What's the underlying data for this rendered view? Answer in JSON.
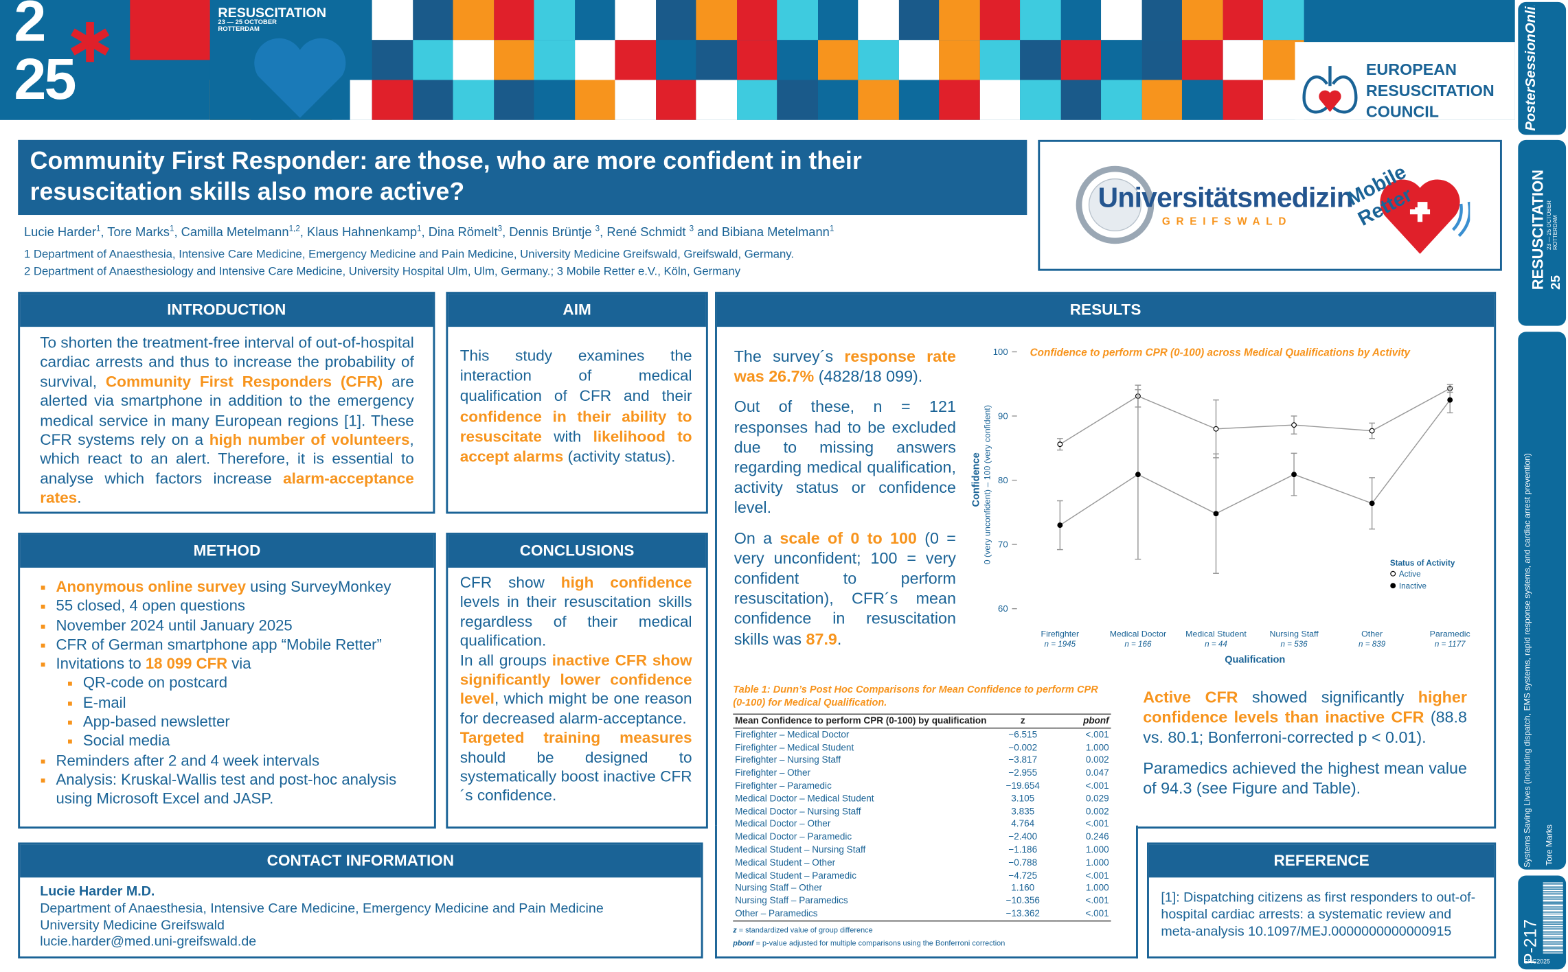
{
  "congress": {
    "year_top": "2",
    "year_bottom": "25",
    "name": "RESUSCITATION",
    "dates": "23 — 25 OCTOBER",
    "city": "ROTTERDAM"
  },
  "erc": [
    "EUROPEAN",
    "RESUSCITATION",
    "COUNCIL"
  ],
  "sidebar": {
    "brand": "PosterSessionOnline",
    "topic": "Systems Saving Lives (including dispatch, EMS systems, rapid response systems, and cardiac arrest prevention)",
    "author": "Tore Marks",
    "poster_id": "P-217",
    "code": "ERC2025"
  },
  "title": "Community First Responder: are those, who are more confident in their resuscitation skills also more active?",
  "authors": [
    {
      "text": "Lucie Harder"
    },
    {
      "sup": "1"
    },
    {
      "text": ", Tore Marks"
    },
    {
      "sup": "1"
    },
    {
      "text": ", Camilla Metelmann"
    },
    {
      "sup": "1,2"
    },
    {
      "text": ", Klaus Hahnenkamp"
    },
    {
      "sup": "1"
    },
    {
      "text": ", Dina Römelt"
    },
    {
      "sup": "3"
    },
    {
      "text": ", Dennis Brüntje "
    },
    {
      "sup": "3"
    },
    {
      "text": ", René Schmidt "
    },
    {
      "sup": "3"
    },
    {
      "text": " and Bibiana Metelmann"
    },
    {
      "sup": "1"
    }
  ],
  "affiliations": [
    "1 Department of Anaesthesia, Intensive Care Medicine, Emergency Medicine and Pain Medicine, University Medicine Greifswald, Greifswald, Germany.",
    "2 Department of Anaesthesiology and Intensive Care Medicine, University Hospital Ulm, Ulm, Germany.; 3 Mobile Retter e.V., Köln, Germany"
  ],
  "logos": {
    "university": "Universitätsmedizin",
    "city": "GREIFSWALD",
    "app": "Mobile Retter"
  },
  "introduction": {
    "heading": "INTRODUCTION",
    "paragraphs": [
      [
        "To shorten the treatment-free interval of out-of-hospital cardiac arrests and thus to increase the probability of survival, ",
        {
          "text": "Community First Responders (CFR)",
          "color": "#f7941d"
        },
        " are alerted via smartphone in addition to the emergency medical service in many European regions [1]. These CFR systems rely on a ",
        {
          "text": "high number of volunteers",
          "color": "#f7941d"
        },
        ", which react to an alert. Therefore, it is essential to analyse which factors increase ",
        {
          "text": "alarm-acceptance rates",
          "color": "#f7941d"
        },
        "."
      ]
    ]
  },
  "aim": {
    "heading": "AIM",
    "paragraphs": [
      [
        "This study examines the interaction of medical qualification of CFR and their ",
        {
          "text": "confidence in their ability to resuscitate",
          "color": "#f7941d"
        },
        " with ",
        {
          "text": "likelihood to accept alarms",
          "color": "#f7941d"
        },
        " (activity status)."
      ]
    ]
  },
  "method": {
    "heading": "METHOD",
    "items": [
      {
        "level": 1,
        "segments": [
          {
            "text": "Anonymous online survey",
            "color": "#f7941d"
          },
          " using SurveyMonkey"
        ]
      },
      {
        "level": 1,
        "segments": [
          "55 closed, 4 open questions"
        ]
      },
      {
        "level": 1,
        "segments": [
          "November 2024 until January 2025"
        ]
      },
      {
        "level": 1,
        "segments": [
          "CFR of German smartphone app “Mobile Retter”"
        ]
      },
      {
        "level": 1,
        "segments": [
          "Invitations to ",
          {
            "text": "18 099 CFR",
            "color": "#f7941d"
          },
          " via"
        ]
      },
      {
        "level": 2,
        "segments": [
          "QR-code on postcard"
        ]
      },
      {
        "level": 2,
        "segments": [
          "E-mail"
        ]
      },
      {
        "level": 2,
        "segments": [
          "App-based newsletter"
        ]
      },
      {
        "level": 2,
        "segments": [
          "Social media"
        ]
      },
      {
        "level": 1,
        "segments": [
          "Reminders after 2 and 4 week intervals"
        ]
      },
      {
        "level": 1,
        "segments": [
          "Analysis: Kruskal-Wallis test and post-hoc analysis  using Microsoft Excel and JASP."
        ]
      }
    ]
  },
  "conclusions": {
    "heading": "CONCLUSIONS",
    "paragraphs": [
      [
        "CFR show ",
        {
          "text": "high confidence",
          "color": "#f7941d"
        },
        " levels in their resuscitation skills regardless of their medical qualification."
      ],
      [
        "In all groups ",
        {
          "text": "inactive CFR show significantly lower confidence level",
          "color": "#f7941d"
        },
        ", which might be one reason for decreased alarm-acceptance."
      ],
      [
        {
          "text": "Targeted training measures",
          "color": "#f7941d"
        },
        " should be designed to systematically boost inactive CFR´s confidence."
      ]
    ]
  },
  "results": {
    "heading": "RESULTS",
    "paragraphs_left": [
      [
        "The survey´s ",
        {
          "text": "response rate was 26.7%",
          "color": "#f7941d"
        },
        " (4828/18 099)."
      ],
      [
        "Out of these, n = 121 responses had to be excluded due to missing answers regarding medical qualification, activity status or confidence level."
      ],
      [
        "On a ",
        {
          "text": "scale of 0 to 100",
          "color": "#f7941d"
        },
        " (0 = very unconfident; 100 = very confident to perform resuscitation), CFR´s mean confidence in resuscitation skills was ",
        {
          "text": "87.9",
          "color": "#f7941d"
        },
        "."
      ]
    ],
    "paragraphs_right": [
      [
        {
          "text": "Active CFR",
          "color": "#f7941d"
        },
        " showed significantly ",
        {
          "text": "higher confidence levels than inactive CFR",
          "color": "#f7941d"
        },
        " (88.8 vs. 80.1; Bonferroni-corrected p < 0.01)."
      ],
      [
        "Paramedics achieved the highest mean value of 94.3 (see Figure and Table)."
      ]
    ]
  },
  "chart_data": {
    "type": "line",
    "title": "Confidence to perform CPR (0-100) across Medical Qualifications by Activity",
    "y_label": "Confidence",
    "y_sublabel": "0 (very unconfident) – 100 (very confident)",
    "x_label": "Qualification",
    "categories": [
      "Firefighter",
      "Medical Doctor",
      "Medical Student",
      "Nursing Staff",
      "Other",
      "Paramedic"
    ],
    "category_notes": [
      "n = 1945",
      "n = 166",
      "n = 44",
      "n = 536",
      "n = 839",
      "n = 1177"
    ],
    "ylim": [
      60,
      100
    ],
    "yticks": [
      60,
      70,
      80,
      90,
      100
    ],
    "legend_title": "Status of Activity",
    "legend": "lower right",
    "series": [
      {
        "name": "Active",
        "color": "#9a9a9a",
        "marker": "open",
        "values": [
          85.6,
          93.1,
          88.0,
          88.6,
          87.7,
          94.3
        ],
        "errors": [
          0.9,
          1.7,
          4.5,
          1.4,
          1.2,
          0.6
        ]
      },
      {
        "name": "Inactive",
        "color": "#9a9a9a",
        "marker": "filled",
        "values": [
          73.0,
          80.9,
          74.8,
          80.9,
          76.4,
          92.5
        ],
        "errors": [
          3.8,
          13.2,
          9.3,
          3.3,
          4.0,
          2.0
        ]
      }
    ]
  },
  "table": {
    "caption": "Table 1: Dunn’s Post Hoc Comparisons for Mean Confidence to perform CPR (0-100) for Medical Qualification.",
    "columns": [
      "Mean Confidence to perform CPR (0-100) by qualification",
      "z",
      "pbonf"
    ],
    "rows": [
      [
        "Firefighter – Medical Doctor",
        "−6.515",
        "<.001"
      ],
      [
        "Firefighter – Medical Student",
        "−0.002",
        "1.000"
      ],
      [
        "Firefighter – Nursing Staff",
        "−3.817",
        "0.002"
      ],
      [
        "Firefighter – Other",
        "−2.955",
        "0.047"
      ],
      [
        "Firefighter – Paramedic",
        "−19.654",
        "<.001"
      ],
      [
        "Medical Doctor – Medical Student",
        "3.105",
        "0.029"
      ],
      [
        "Medical Doctor – Nursing Staff",
        "3.835",
        "0.002"
      ],
      [
        "Medical Doctor – Other",
        "4.764",
        "<.001"
      ],
      [
        "Medical Doctor – Paramedic",
        "−2.400",
        "0.246"
      ],
      [
        "Medical Student – Nursing Staff",
        "−1.186",
        "1.000"
      ],
      [
        "Medical Student – Other",
        "−0.788",
        "1.000"
      ],
      [
        "Medical Student – Paramedic",
        "−4.725",
        "<.001"
      ],
      [
        "Nursing Staff – Other",
        "1.160",
        "1.000"
      ],
      [
        "Nursing Staff – Paramedics",
        "−10.356",
        "<.001"
      ],
      [
        "Other – Paramedics",
        "−13.362",
        "<.001"
      ]
    ],
    "notes": [
      {
        "symbol": "z",
        "text": " = standardized value of group difference"
      },
      {
        "symbol": "pbonf",
        "text": " = p-value adjusted for multiple comparisons using the Bonferroni correction"
      }
    ]
  },
  "contact": {
    "heading": "CONTACT INFORMATION",
    "lines": [
      "Lucie Harder M.D.",
      "Department of Anaesthesia, Intensive Care Medicine, Emergency Medicine and Pain Medicine",
      "University Medicine Greifswald",
      "lucie.harder@med.uni-greifswald.de"
    ]
  },
  "reference": {
    "heading": "REFERENCE",
    "text": "[1]: Dispatching citizens as first responders to out-of-hospital cardiac arrests: a systematic review and meta-analysis 10.1097/MEJ.0000000000000915"
  }
}
